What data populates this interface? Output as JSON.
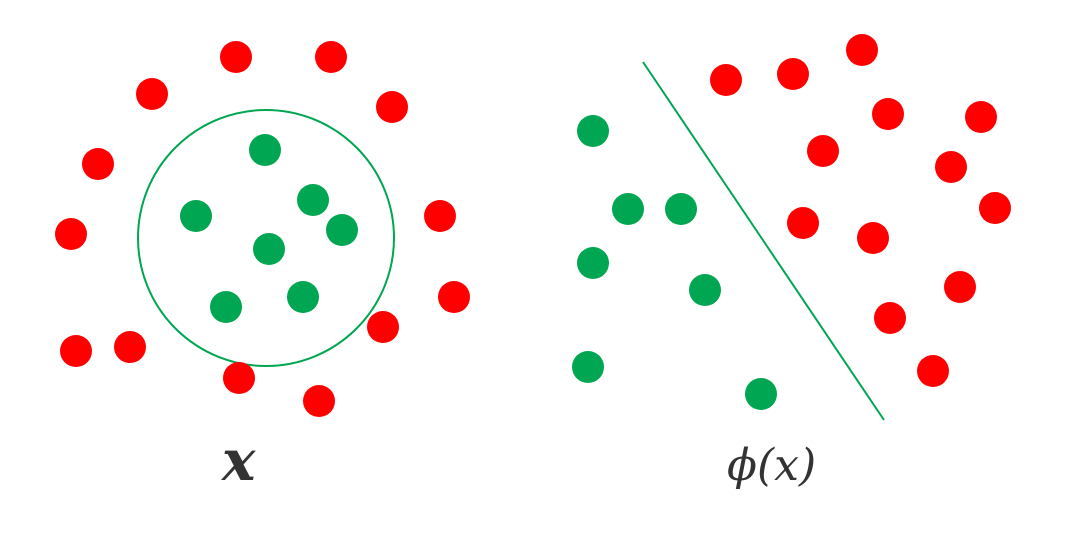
{
  "colors": {
    "inner": "#00a651",
    "outer": "#ff0000",
    "boundary": "#00a651"
  },
  "left_panel": {
    "label": "x"
  },
  "right_panel": {
    "label": "ϕ(x)"
  }
}
